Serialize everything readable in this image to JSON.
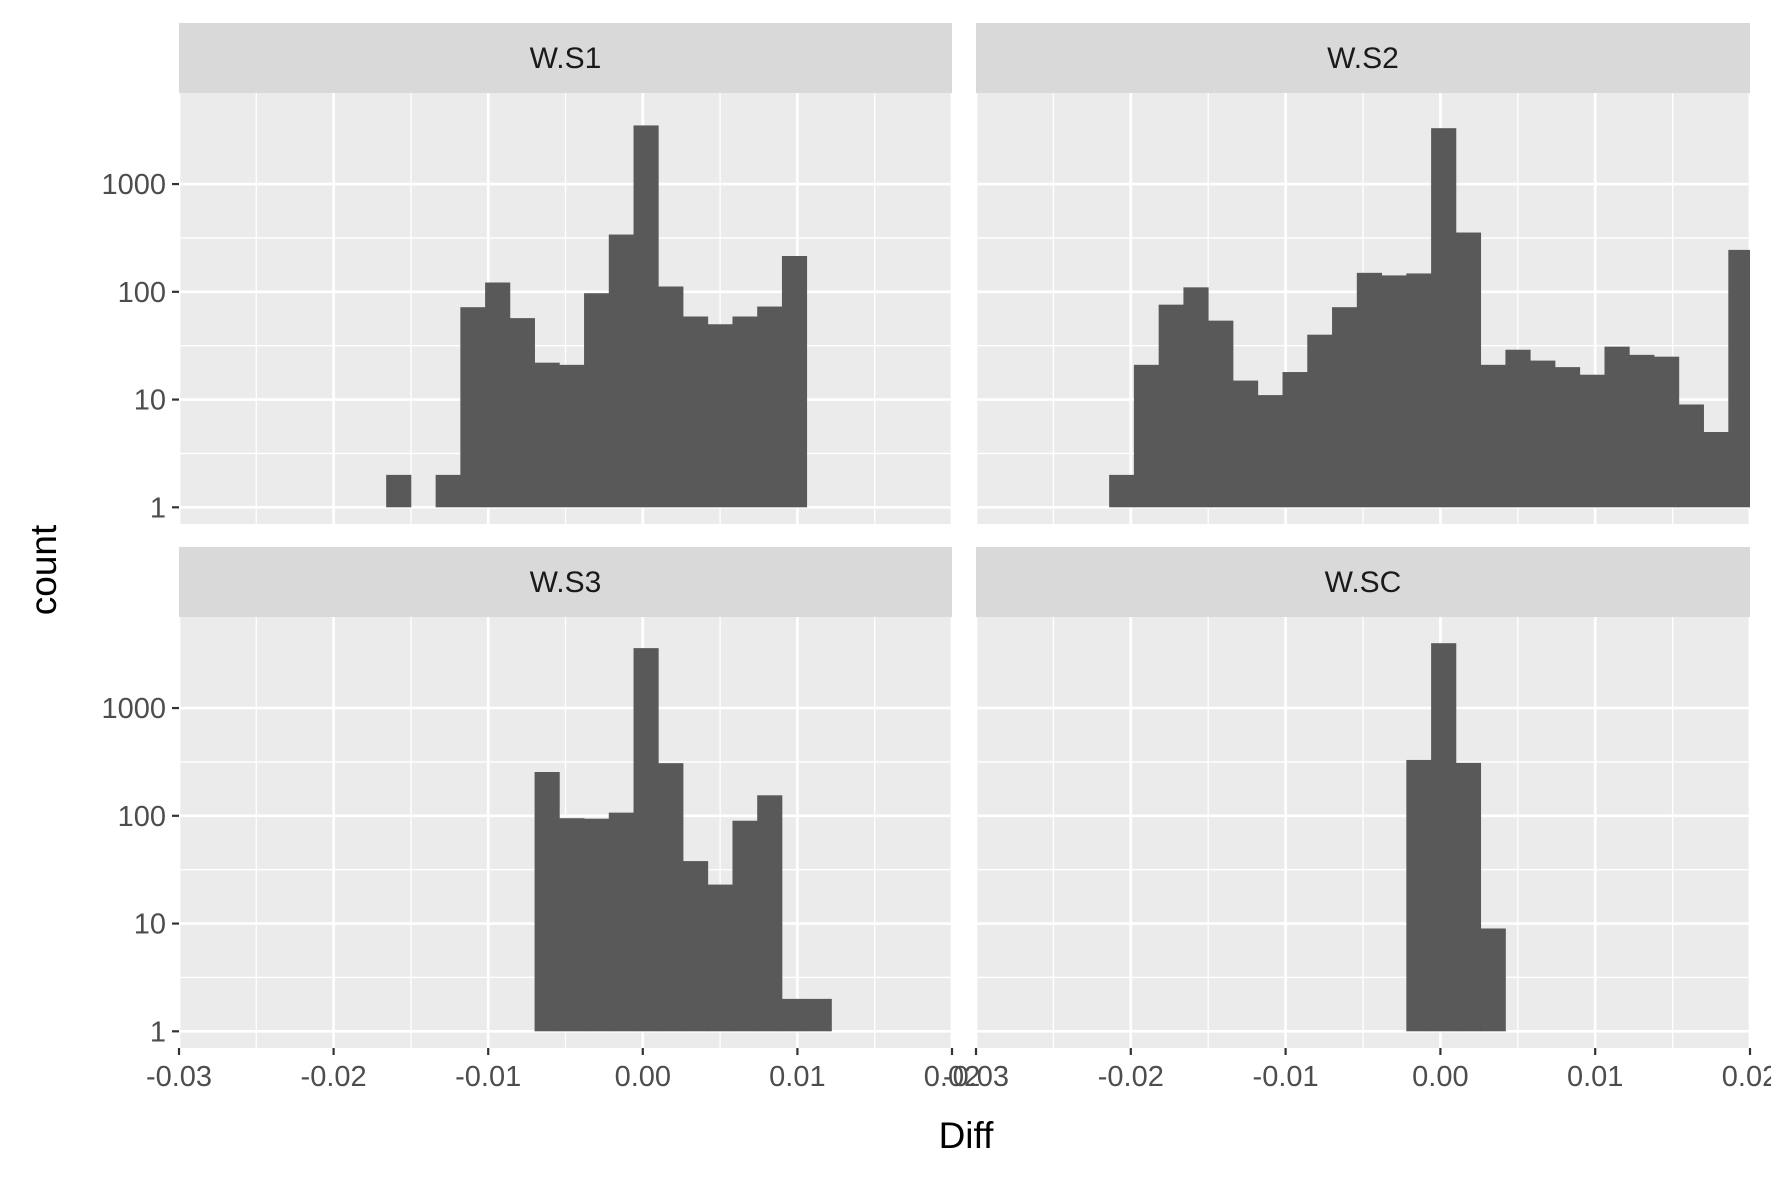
{
  "chart_data": {
    "type": "bar",
    "facet_layout": "2x2 grid",
    "xlabel": "Diff",
    "ylabel": "count",
    "xlim": [
      -0.03,
      0.02
    ],
    "x_ticks": [
      "-0.03",
      "-0.02",
      "-0.01",
      "0.00",
      "0.01",
      "0.02"
    ],
    "x_tick_values": [
      -0.03,
      -0.02,
      -0.01,
      0.0,
      0.01,
      0.02
    ],
    "y_scale": "log10",
    "ylim": [
      0.7,
      7000
    ],
    "y_ticks": [
      "1",
      "10",
      "100",
      "1000"
    ],
    "y_tick_values": [
      1,
      10,
      100,
      1000
    ],
    "grid": true,
    "bar_color": "#595959",
    "panel_background": "#ebebeb",
    "strip_background": "#d9d9d9",
    "bin_width": 0.0016,
    "panels": [
      {
        "name": "W.S1",
        "bins": [
          {
            "x0": -0.0166,
            "count": 2
          },
          {
            "x0": -0.0134,
            "count": 2
          },
          {
            "x0": -0.0118,
            "count": 72
          },
          {
            "x0": -0.0102,
            "count": 122
          },
          {
            "x0": -0.0086,
            "count": 57
          },
          {
            "x0": -0.007,
            "count": 22
          },
          {
            "x0": -0.0054,
            "count": 21
          },
          {
            "x0": -0.0038,
            "count": 97
          },
          {
            "x0": -0.0022,
            "count": 340
          },
          {
            "x0": -0.0006,
            "count": 3500
          },
          {
            "x0": 0.001,
            "count": 112
          },
          {
            "x0": 0.0026,
            "count": 59
          },
          {
            "x0": 0.0042,
            "count": 50
          },
          {
            "x0": 0.0058,
            "count": 59
          },
          {
            "x0": 0.0074,
            "count": 73
          },
          {
            "x0": 0.009,
            "count": 215
          }
        ]
      },
      {
        "name": "W.S2",
        "bins": [
          {
            "x0": -0.0214,
            "count": 2
          },
          {
            "x0": -0.0198,
            "count": 21
          },
          {
            "x0": -0.0182,
            "count": 76
          },
          {
            "x0": -0.0166,
            "count": 110
          },
          {
            "x0": -0.015,
            "count": 54
          },
          {
            "x0": -0.0134,
            "count": 15
          },
          {
            "x0": -0.0118,
            "count": 11
          },
          {
            "x0": -0.0102,
            "count": 18
          },
          {
            "x0": -0.0086,
            "count": 40
          },
          {
            "x0": -0.007,
            "count": 72
          },
          {
            "x0": -0.0054,
            "count": 150
          },
          {
            "x0": -0.0038,
            "count": 142
          },
          {
            "x0": -0.0022,
            "count": 148
          },
          {
            "x0": -0.0006,
            "count": 3300
          },
          {
            "x0": 0.001,
            "count": 355
          },
          {
            "x0": 0.0026,
            "count": 21
          },
          {
            "x0": 0.0042,
            "count": 29
          },
          {
            "x0": 0.0058,
            "count": 23
          },
          {
            "x0": 0.0074,
            "count": 20
          },
          {
            "x0": 0.009,
            "count": 17
          },
          {
            "x0": 0.0106,
            "count": 31
          },
          {
            "x0": 0.0122,
            "count": 26
          },
          {
            "x0": 0.0138,
            "count": 25
          },
          {
            "x0": 0.0154,
            "count": 9
          },
          {
            "x0": 0.017,
            "count": 5
          },
          {
            "x0": 0.0186,
            "count": 245
          }
        ]
      },
      {
        "name": "W.S3",
        "bins": [
          {
            "x0": -0.007,
            "count": 255
          },
          {
            "x0": -0.0054,
            "count": 95
          },
          {
            "x0": -0.0038,
            "count": 94
          },
          {
            "x0": -0.0022,
            "count": 107
          },
          {
            "x0": -0.0006,
            "count": 3600
          },
          {
            "x0": 0.001,
            "count": 308
          },
          {
            "x0": 0.0026,
            "count": 38
          },
          {
            "x0": 0.0042,
            "count": 23
          },
          {
            "x0": 0.0058,
            "count": 90
          },
          {
            "x0": 0.0074,
            "count": 155
          },
          {
            "x0": 0.009,
            "count": 2
          },
          {
            "x0": 0.0106,
            "count": 2
          }
        ]
      },
      {
        "name": "W.SC",
        "bins": [
          {
            "x0": -0.0022,
            "count": 330
          },
          {
            "x0": -0.0006,
            "count": 4000
          },
          {
            "x0": 0.001,
            "count": 310
          },
          {
            "x0": 0.0026,
            "count": 9
          }
        ]
      }
    ]
  }
}
